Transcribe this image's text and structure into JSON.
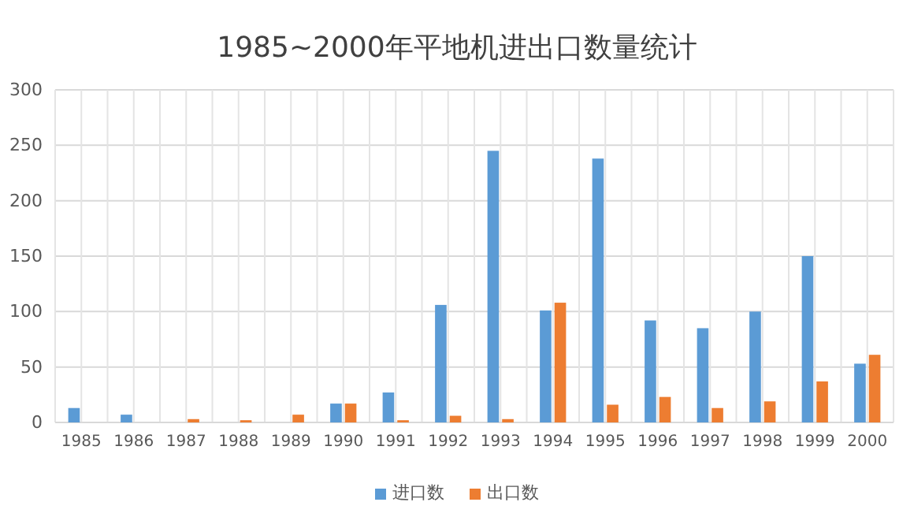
{
  "chart_data": {
    "type": "bar",
    "title": "1985~2000年平地机进出口数量统计",
    "categories": [
      "1985",
      "1986",
      "1987",
      "1988",
      "1989",
      "1990",
      "1991",
      "1992",
      "1993",
      "1994",
      "1995",
      "1996",
      "1997",
      "1998",
      "1999",
      "2000"
    ],
    "series": [
      {
        "name": "进口数",
        "color": "#5b9bd5",
        "values": [
          13,
          7,
          0,
          0,
          0,
          17,
          27,
          106,
          245,
          101,
          238,
          92,
          85,
          100,
          150,
          53
        ]
      },
      {
        "name": "出口数",
        "color": "#ed7d31",
        "values": [
          0,
          0,
          3,
          2,
          7,
          17,
          2,
          6,
          3,
          108,
          16,
          23,
          13,
          19,
          37,
          61
        ]
      }
    ],
    "ylim": [
      0,
      300
    ],
    "yticks": [
      0,
      50,
      100,
      150,
      200,
      250,
      300
    ],
    "grid": true,
    "legend": "bottom"
  }
}
